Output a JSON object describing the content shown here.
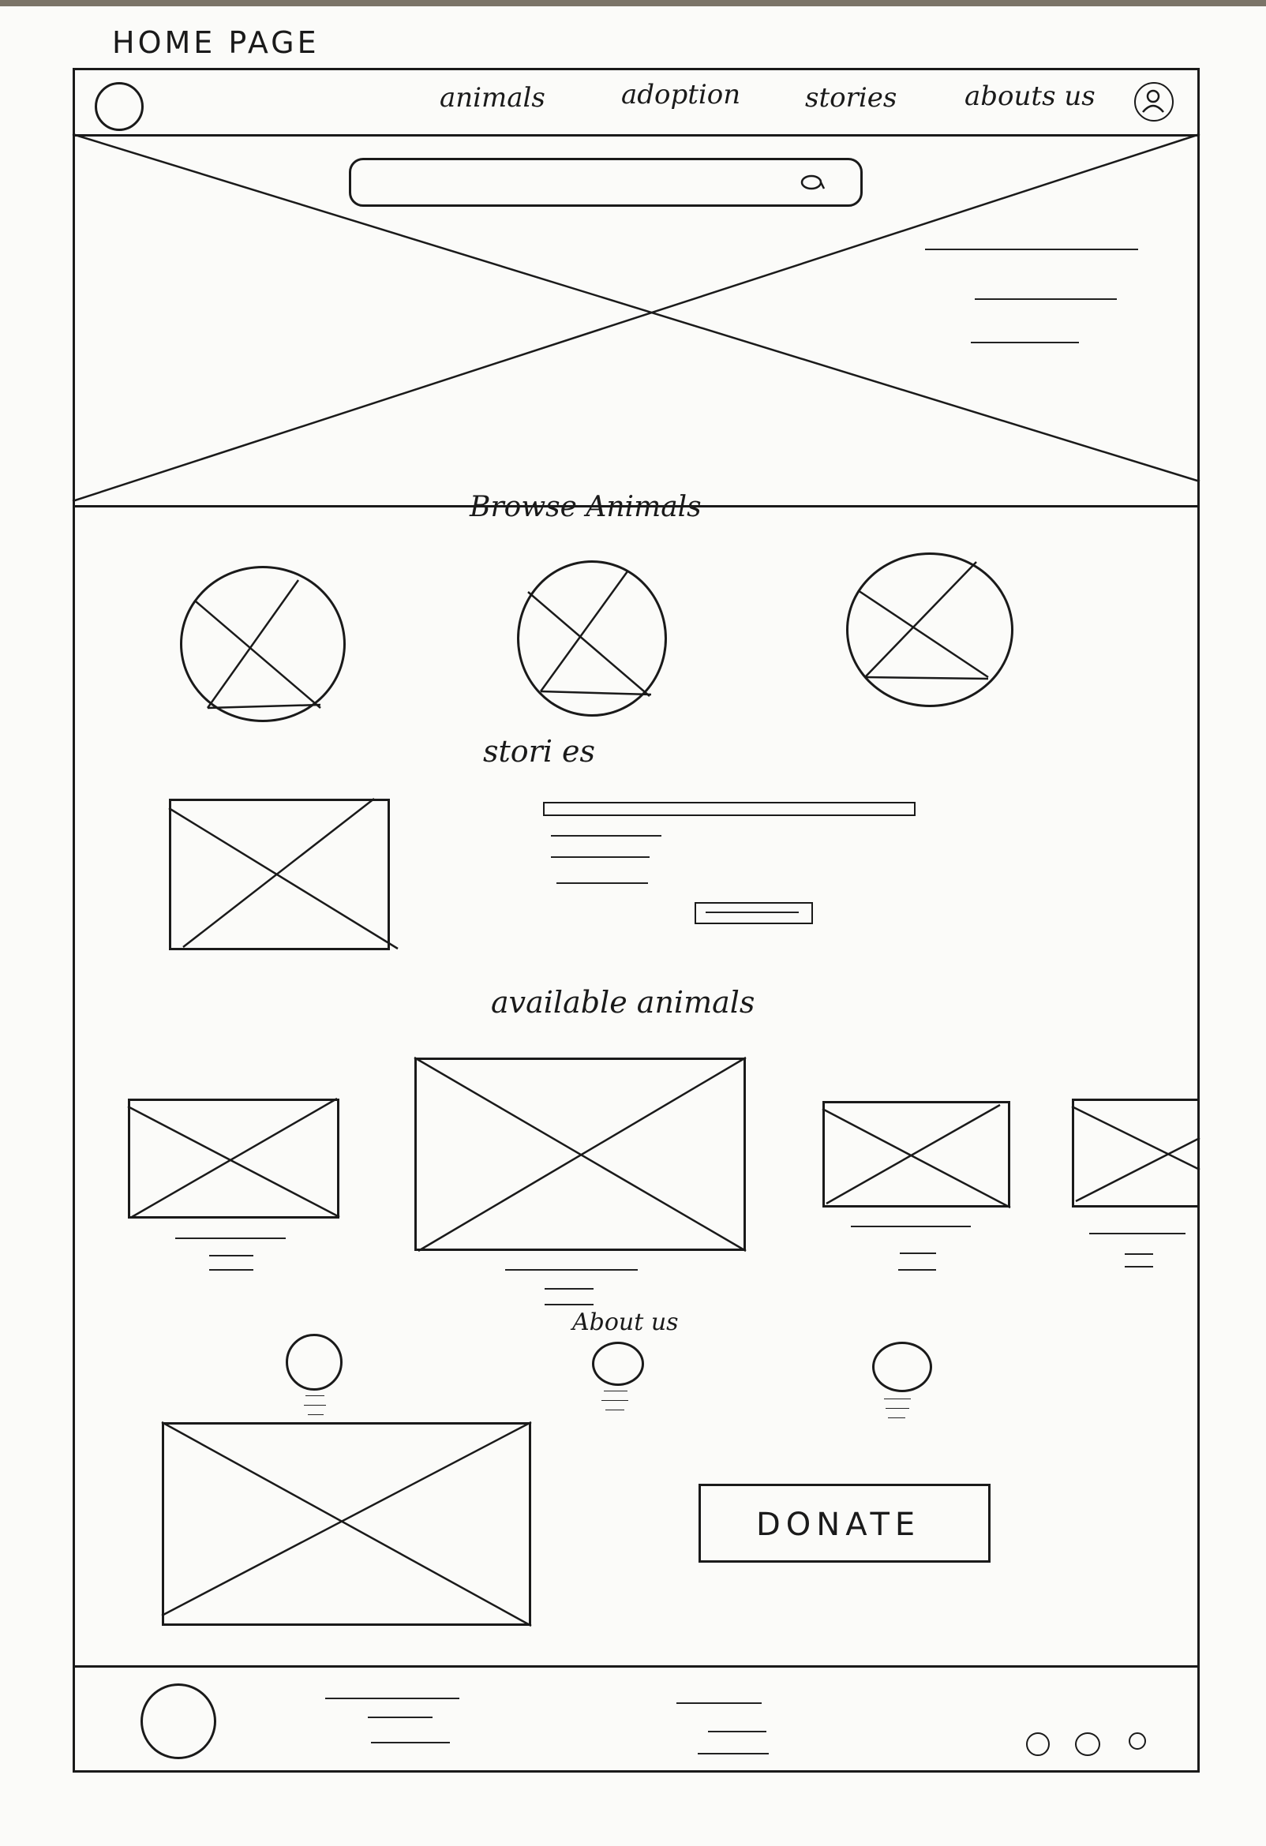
{
  "page_label": "HOME   PAGE",
  "nav": {
    "items": [
      "animals",
      "adoption",
      "stories",
      "abouts us"
    ]
  },
  "sections": {
    "browse": "Browse   Animals",
    "stories": "stori es",
    "available": "available   animals",
    "about": "About   us"
  },
  "donate": "DONATE",
  "icons": [
    "logo-circle-icon",
    "user-icon",
    "search-icon",
    "social-dot-icon"
  ]
}
